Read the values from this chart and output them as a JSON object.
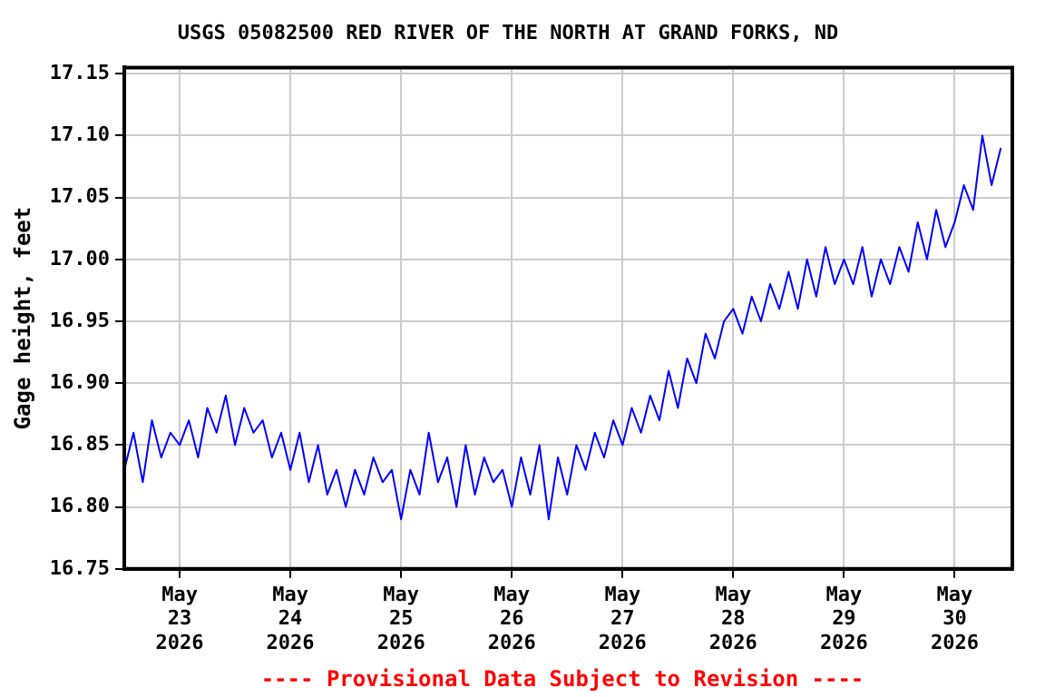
{
  "chart_data": {
    "type": "line",
    "title": "USGS 05082500 RED RIVER OF THE NORTH AT GRAND FORKS, ND",
    "ylabel": "Gage height, feet",
    "annotations": [
      "---- Provisional Data Subject to Revision ----"
    ],
    "x": [
      "2026-05-22T12:00",
      "2026-05-22T14:00",
      "2026-05-22T16:00",
      "2026-05-22T18:00",
      "2026-05-22T20:00",
      "2026-05-22T22:00",
      "2026-05-23T00:00",
      "2026-05-23T02:00",
      "2026-05-23T04:00",
      "2026-05-23T06:00",
      "2026-05-23T08:00",
      "2026-05-23T10:00",
      "2026-05-23T12:00",
      "2026-05-23T14:00",
      "2026-05-23T16:00",
      "2026-05-23T18:00",
      "2026-05-23T20:00",
      "2026-05-23T22:00",
      "2026-05-24T00:00",
      "2026-05-24T02:00",
      "2026-05-24T04:00",
      "2026-05-24T06:00",
      "2026-05-24T08:00",
      "2026-05-24T10:00",
      "2026-05-24T12:00",
      "2026-05-24T14:00",
      "2026-05-24T16:00",
      "2026-05-24T18:00",
      "2026-05-24T20:00",
      "2026-05-24T22:00",
      "2026-05-25T00:00",
      "2026-05-25T02:00",
      "2026-05-25T04:00",
      "2026-05-25T06:00",
      "2026-05-25T08:00",
      "2026-05-25T10:00",
      "2026-05-25T12:00",
      "2026-05-25T14:00",
      "2026-05-25T16:00",
      "2026-05-25T18:00",
      "2026-05-25T20:00",
      "2026-05-25T22:00",
      "2026-05-26T00:00",
      "2026-05-26T02:00",
      "2026-05-26T04:00",
      "2026-05-26T06:00",
      "2026-05-26T08:00",
      "2026-05-26T10:00",
      "2026-05-26T12:00",
      "2026-05-26T14:00",
      "2026-05-26T16:00",
      "2026-05-26T18:00",
      "2026-05-26T20:00",
      "2026-05-26T22:00",
      "2026-05-27T00:00",
      "2026-05-27T02:00",
      "2026-05-27T04:00",
      "2026-05-27T06:00",
      "2026-05-27T08:00",
      "2026-05-27T10:00",
      "2026-05-27T12:00",
      "2026-05-27T14:00",
      "2026-05-27T16:00",
      "2026-05-27T18:00",
      "2026-05-27T20:00",
      "2026-05-27T22:00",
      "2026-05-28T00:00",
      "2026-05-28T02:00",
      "2026-05-28T04:00",
      "2026-05-28T06:00",
      "2026-05-28T08:00",
      "2026-05-28T10:00",
      "2026-05-28T12:00",
      "2026-05-28T14:00",
      "2026-05-28T16:00",
      "2026-05-28T18:00",
      "2026-05-28T20:00",
      "2026-05-28T22:00",
      "2026-05-29T00:00",
      "2026-05-29T02:00",
      "2026-05-29T04:00",
      "2026-05-29T06:00",
      "2026-05-29T08:00",
      "2026-05-29T10:00",
      "2026-05-29T12:00",
      "2026-05-29T14:00",
      "2026-05-29T16:00",
      "2026-05-29T18:00",
      "2026-05-29T20:00",
      "2026-05-29T22:00",
      "2026-05-30T00:00",
      "2026-05-30T02:00",
      "2026-05-30T04:00",
      "2026-05-30T06:00",
      "2026-05-30T08:00",
      "2026-05-30T10:00"
    ],
    "series": [
      {
        "color": "#0000ff",
        "values": [
          16.83,
          16.86,
          16.82,
          16.87,
          16.84,
          16.86,
          16.85,
          16.87,
          16.84,
          16.88,
          16.86,
          16.89,
          16.85,
          16.88,
          16.86,
          16.87,
          16.84,
          16.86,
          16.83,
          16.86,
          16.82,
          16.85,
          16.81,
          16.83,
          16.8,
          16.83,
          16.81,
          16.84,
          16.82,
          16.83,
          16.79,
          16.83,
          16.81,
          16.86,
          16.82,
          16.84,
          16.8,
          16.85,
          16.81,
          16.84,
          16.82,
          16.83,
          16.8,
          16.84,
          16.81,
          16.85,
          16.79,
          16.84,
          16.81,
          16.85,
          16.83,
          16.86,
          16.84,
          16.87,
          16.85,
          16.88,
          16.86,
          16.89,
          16.87,
          16.91,
          16.88,
          16.92,
          16.9,
          16.94,
          16.92,
          16.95,
          16.96,
          16.94,
          16.97,
          16.95,
          16.98,
          16.96,
          16.99,
          16.96,
          17.0,
          16.97,
          17.01,
          16.98,
          17.0,
          16.98,
          17.01,
          16.97,
          17.0,
          16.98,
          17.01,
          16.99,
          17.03,
          17.0,
          17.04,
          17.01,
          17.03,
          17.06,
          17.04,
          17.1,
          17.06,
          17.09
        ]
      }
    ],
    "xlim": [
      "2026-05-22T12:00",
      "2026-05-30T12:30"
    ],
    "xticks": [
      {
        "value": "2026-05-23",
        "label": "May\n23\n2026"
      },
      {
        "value": "2026-05-24",
        "label": "May\n24\n2026"
      },
      {
        "value": "2026-05-25",
        "label": "May\n25\n2026"
      },
      {
        "value": "2026-05-26",
        "label": "May\n26\n2026"
      },
      {
        "value": "2026-05-27",
        "label": "May\n27\n2026"
      },
      {
        "value": "2026-05-28",
        "label": "May\n28\n2026"
      },
      {
        "value": "2026-05-29",
        "label": "May\n29\n2026"
      },
      {
        "value": "2026-05-30",
        "label": "May\n30\n2026"
      }
    ],
    "ylim": [
      16.75,
      17.155
    ],
    "yticks": [
      {
        "value": 16.75,
        "label": "16.75"
      },
      {
        "value": 16.8,
        "label": "16.80"
      },
      {
        "value": 16.85,
        "label": "16.85"
      },
      {
        "value": 16.9,
        "label": "16.90"
      },
      {
        "value": 16.95,
        "label": "16.95"
      },
      {
        "value": 17.0,
        "label": "17.00"
      },
      {
        "value": 17.05,
        "label": "17.05"
      },
      {
        "value": 17.1,
        "label": "17.10"
      },
      {
        "value": 17.15,
        "label": "17.15"
      }
    ],
    "grid": true,
    "marker": "none",
    "line_style": "solid"
  }
}
